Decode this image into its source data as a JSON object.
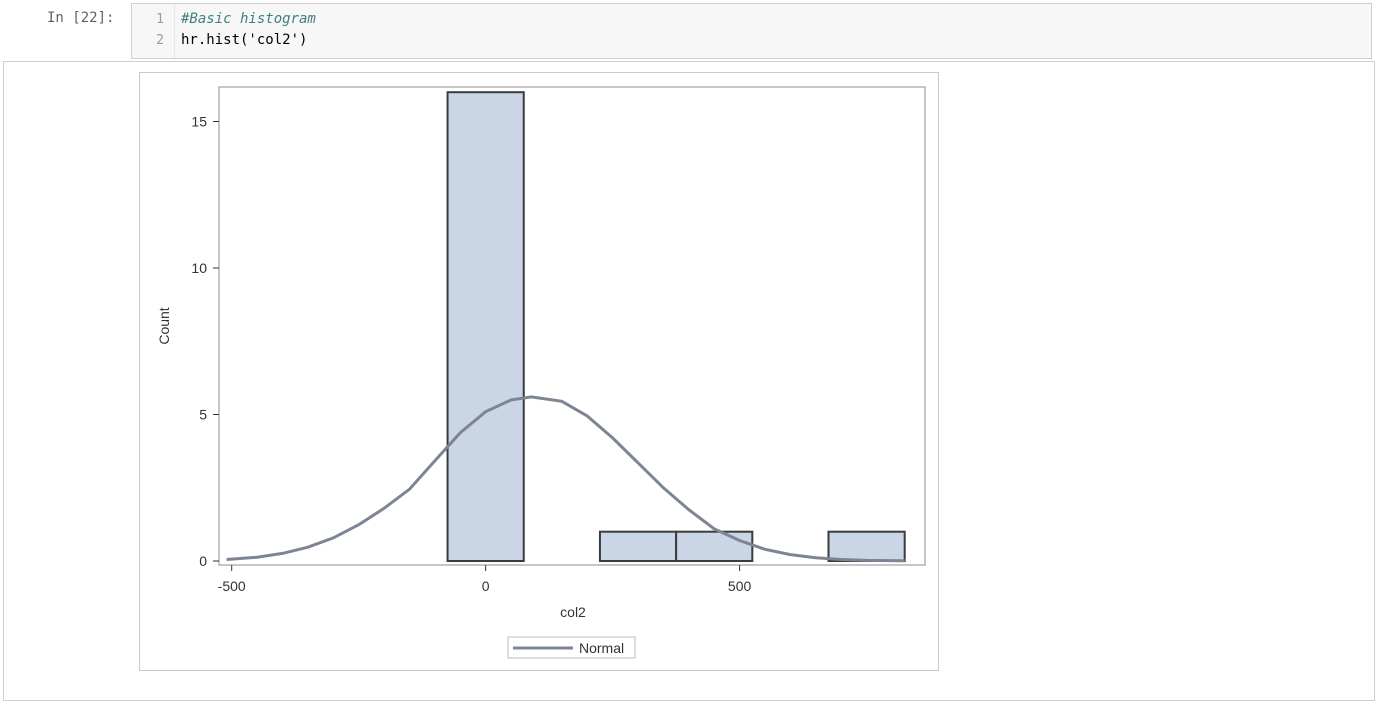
{
  "cell": {
    "prompt": "In [22]:",
    "lines": [
      {
        "number": "1",
        "text": "#Basic histogram"
      },
      {
        "number": "2",
        "text": "hr.hist('col2')"
      }
    ]
  },
  "colors": {
    "bar_fill": "#cad5e5",
    "bar_stroke": "#3b3b3b",
    "curve": "#7d8593"
  },
  "chart_data": {
    "type": "bar",
    "subtype": "histogram",
    "xlabel": "col2",
    "ylabel": "Count",
    "xlim": [
      -525,
      865
    ],
    "ylim": [
      0,
      16.2
    ],
    "xticks": [
      -500,
      0,
      500
    ],
    "yticks": [
      0,
      5,
      10,
      15
    ],
    "bins": [
      {
        "start": -75,
        "end": 75,
        "count": 16
      },
      {
        "start": 75,
        "end": 225,
        "count": 0
      },
      {
        "start": 225,
        "end": 375,
        "count": 1
      },
      {
        "start": 375,
        "end": 525,
        "count": 1
      },
      {
        "start": 525,
        "end": 675,
        "count": 0
      },
      {
        "start": 675,
        "end": 825,
        "count": 1
      }
    ],
    "normal_curve": {
      "name": "Normal",
      "points": [
        [
          -510,
          0.05
        ],
        [
          -450,
          0.13
        ],
        [
          -400,
          0.26
        ],
        [
          -350,
          0.47
        ],
        [
          -300,
          0.79
        ],
        [
          -250,
          1.24
        ],
        [
          -200,
          1.8
        ],
        [
          -150,
          2.45
        ],
        [
          -100,
          3.42
        ],
        [
          -50,
          4.38
        ],
        [
          0,
          5.1
        ],
        [
          50,
          5.5
        ],
        [
          90,
          5.6
        ],
        [
          150,
          5.45
        ],
        [
          200,
          4.95
        ],
        [
          250,
          4.2
        ],
        [
          300,
          3.35
        ],
        [
          350,
          2.5
        ],
        [
          400,
          1.75
        ],
        [
          450,
          1.1
        ],
        [
          500,
          0.7
        ],
        [
          550,
          0.4
        ],
        [
          600,
          0.22
        ],
        [
          650,
          0.11
        ],
        [
          700,
          0.05
        ],
        [
          750,
          0.02
        ],
        [
          825,
          0.01
        ]
      ]
    },
    "legend": {
      "entries": [
        "Normal"
      ],
      "placement": "bottom-center"
    },
    "grid": false
  }
}
